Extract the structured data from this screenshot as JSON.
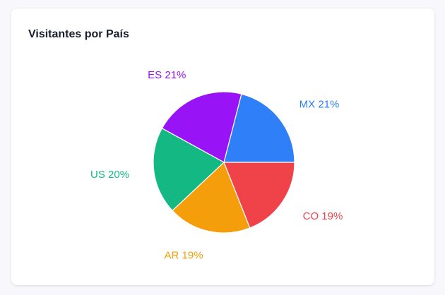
{
  "card": {
    "title": "Visitantes por País"
  },
  "chart_data": {
    "type": "pie",
    "title": "Visitantes por País",
    "categories": [
      "MX",
      "ES",
      "US",
      "AR",
      "CO"
    ],
    "values": [
      21,
      21,
      20,
      19,
      19
    ],
    "labels": [
      "MX 21%",
      "ES 21%",
      "US 20%",
      "AR 19%",
      "CO 19%"
    ],
    "colors": [
      "#2f7ff8",
      "#9813f5",
      "#14b882",
      "#f59e0c",
      "#ef4349"
    ],
    "start_angle_deg": 0,
    "direction": "counterclockwise",
    "legend": "none"
  }
}
